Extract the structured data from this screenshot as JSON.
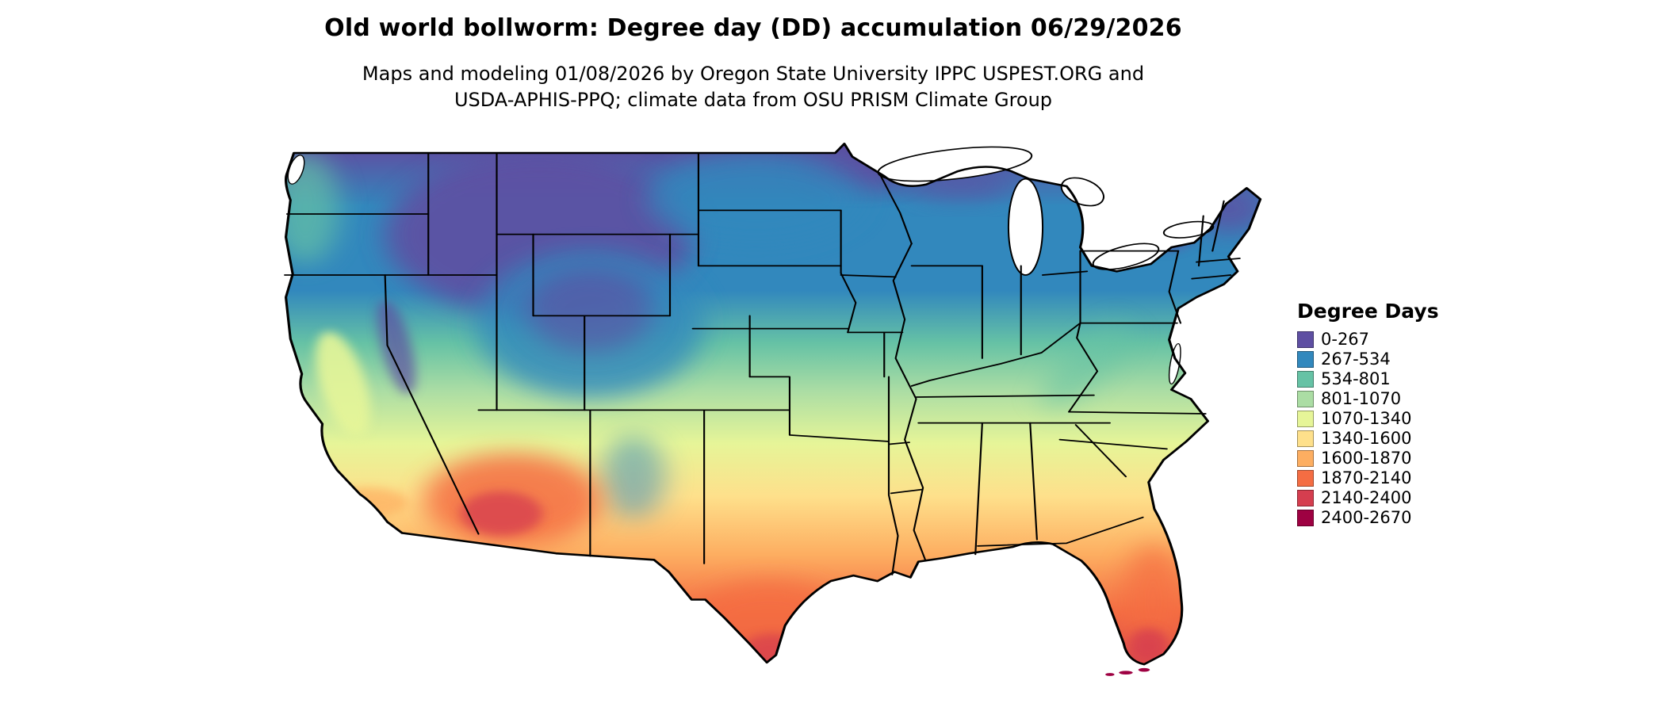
{
  "header": {
    "title": "Old world bollworm: Degree day (DD) accumulation 06/29/2026",
    "subtitle_line1": "Maps and modeling 01/08/2026 by Oregon State University IPPC USPEST.ORG and",
    "subtitle_line2": "USDA-APHIS-PPQ; climate data from OSU PRISM Climate Group"
  },
  "legend": {
    "title": "Degree Days",
    "entries": [
      {
        "label": "0-267",
        "color": "#5e4fa2"
      },
      {
        "label": "267-534",
        "color": "#3288bd"
      },
      {
        "label": "534-801",
        "color": "#66c2a5"
      },
      {
        "label": "801-1070",
        "color": "#abdda4"
      },
      {
        "label": "1070-1340",
        "color": "#e6f598"
      },
      {
        "label": "1340-1600",
        "color": "#fee08b"
      },
      {
        "label": "1600-1870",
        "color": "#fdae61"
      },
      {
        "label": "1870-2140",
        "color": "#f46d43"
      },
      {
        "label": "2140-2400",
        "color": "#d53e4f"
      },
      {
        "label": "2400-2670",
        "color": "#9e0142"
      }
    ]
  }
}
